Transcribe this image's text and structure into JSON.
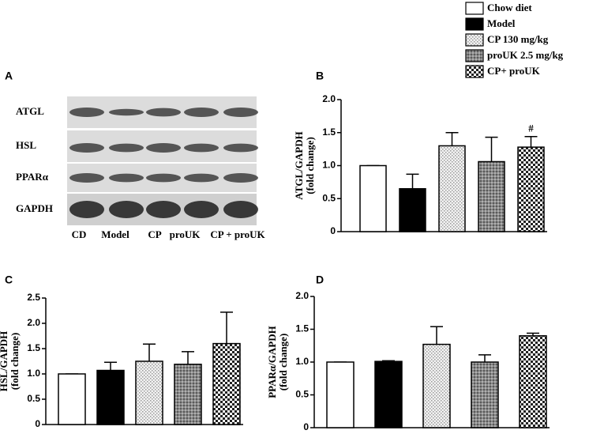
{
  "blot": {
    "panel": "A",
    "rows": [
      "ATGL",
      "HSL",
      "PPARα",
      "GAPDH"
    ],
    "lanes": [
      "CD",
      "Model",
      "CP",
      "proUK",
      "CP + proUK"
    ]
  },
  "legend": {
    "entries": [
      {
        "name": "Chow diet",
        "fill": "#ffffff"
      },
      {
        "name": "Model",
        "fill": "#000000"
      },
      {
        "name": "CP 130 mg/kg",
        "fill": "dots"
      },
      {
        "name": "proUK 2.5 mg/kg",
        "fill": "hatch"
      },
      {
        "name": "CP+ proUK",
        "fill": "checker"
      }
    ]
  },
  "chart_data": [
    {
      "type": "bar",
      "panel": "B",
      "ylabel": [
        "ATGL/GAPDH",
        "(fold change)"
      ],
      "values": [
        1.0,
        0.65,
        1.3,
        1.06,
        1.28
      ],
      "errors": [
        0,
        0.22,
        0.2,
        0.37,
        0.16
      ],
      "annotation_labels": [
        null,
        null,
        null,
        null,
        "#"
      ],
      "ylim": [
        0,
        2
      ],
      "yticks": [
        0,
        0.5,
        {
          "value": 1,
          "label": "1.0"
        },
        1.5,
        {
          "value": 2,
          "label": "2.0"
        }
      ]
    },
    {
      "type": "bar",
      "panel": "C",
      "ylabel": [
        "HSL/GAPDH",
        "(fold change)"
      ],
      "values": [
        1.0,
        1.07,
        1.25,
        1.19,
        1.6
      ],
      "errors": [
        0,
        0.16,
        0.34,
        0.25,
        0.62
      ],
      "ylim": [
        0,
        2.5
      ],
      "yticks": [
        0,
        0.5,
        {
          "value": 1,
          "label": "1.0"
        },
        1.5,
        {
          "value": 2,
          "label": "2.0"
        },
        2.5
      ]
    },
    {
      "type": "bar",
      "panel": "D",
      "ylabel": [
        "PPARα/GAPDH",
        "(fold change)"
      ],
      "values": [
        1.0,
        1.01,
        1.27,
        1.0,
        1.4
      ],
      "errors": [
        0,
        0.01,
        0.27,
        0.11,
        0.04
      ],
      "ylim": [
        0,
        2
      ],
      "yticks": [
        0,
        0.5,
        {
          "value": 1,
          "label": "1.0"
        },
        1.5,
        {
          "value": 2,
          "label": "2.0"
        }
      ]
    }
  ]
}
